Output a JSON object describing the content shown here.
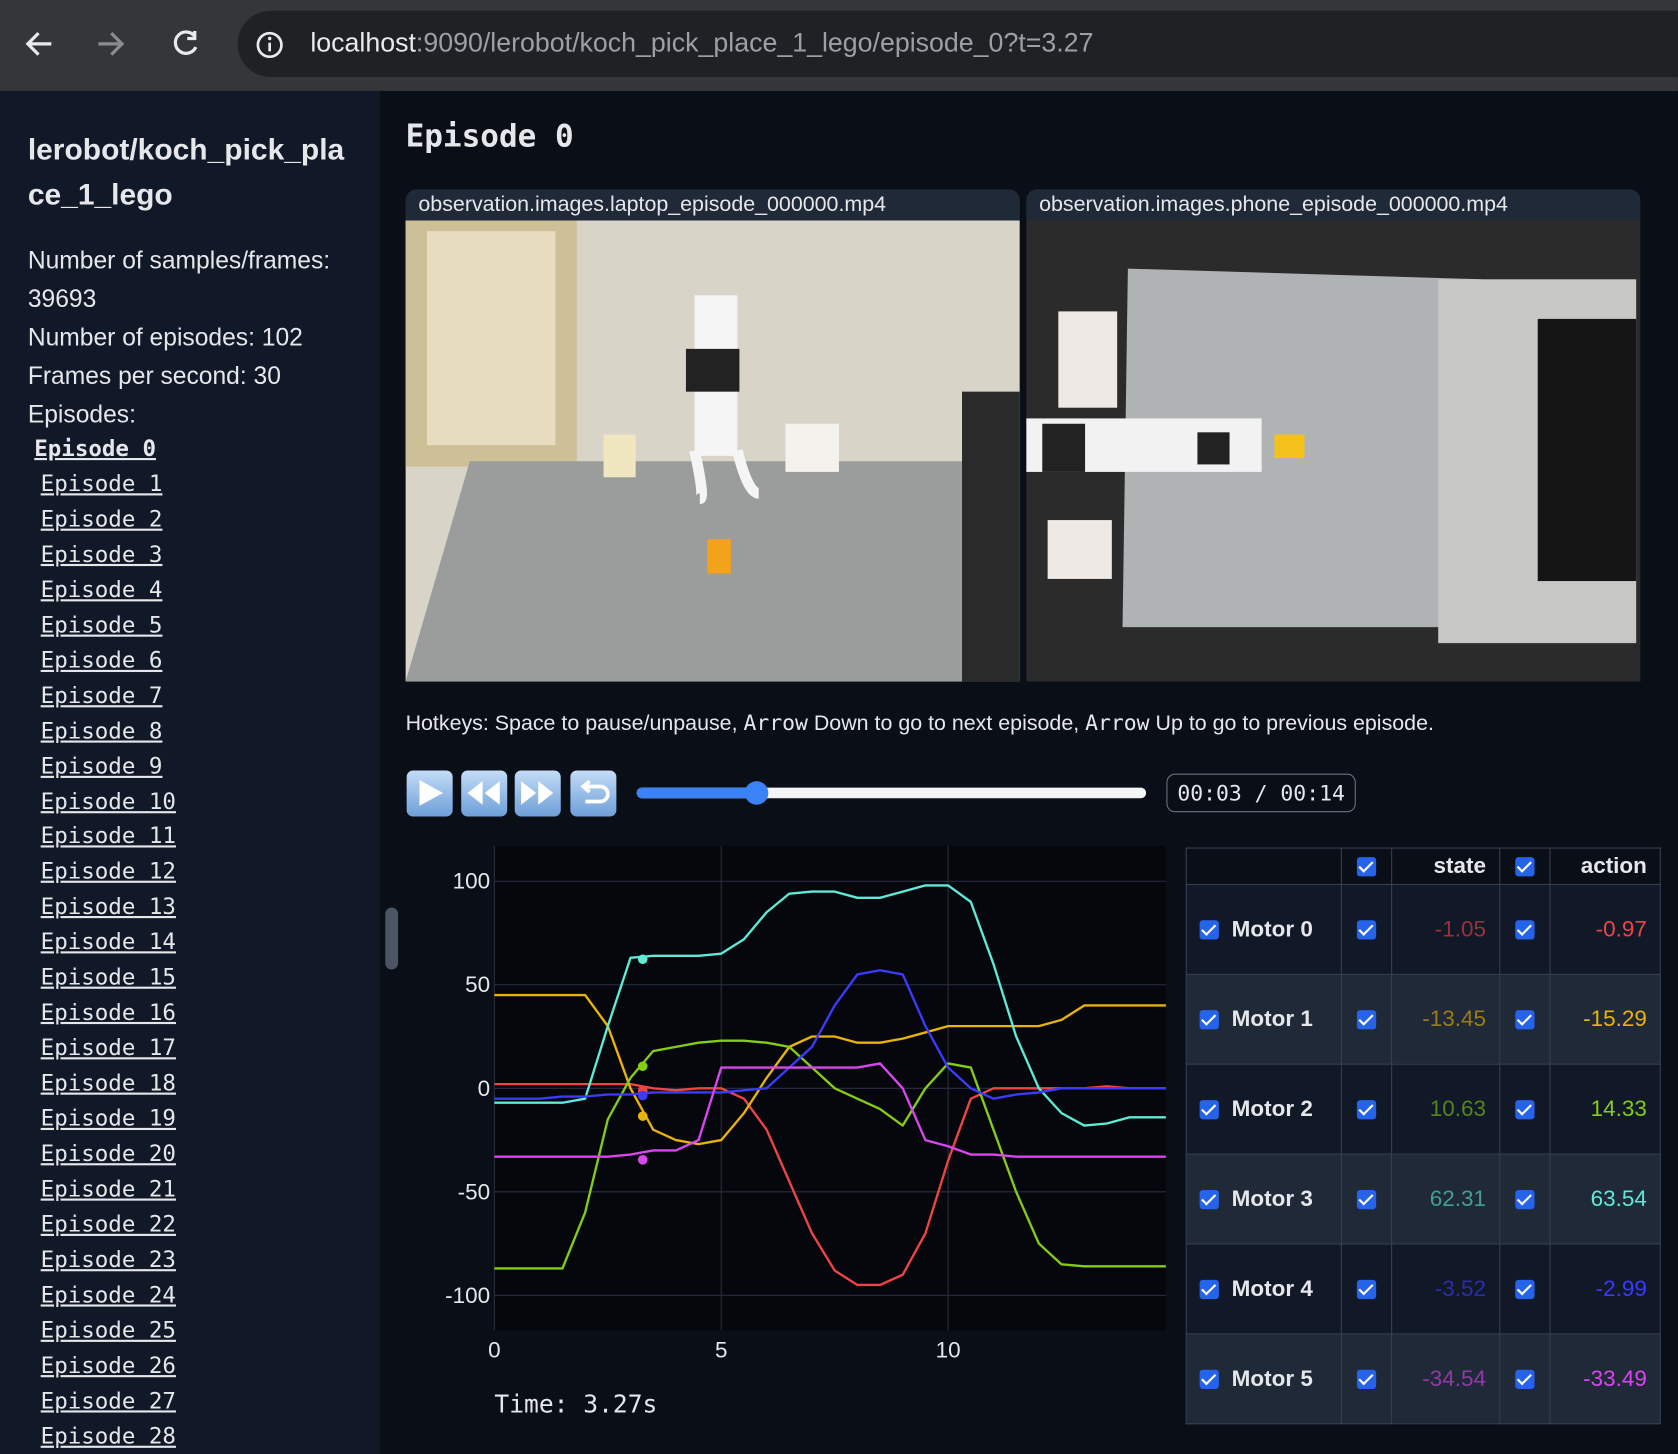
{
  "browser": {
    "url_host": "localhost",
    "url_path": ":9090/lerobot/koch_pick_place_1_lego/episode_0?t=3.27"
  },
  "sidebar": {
    "title": "lerobot/koch_pick_place_1_lego",
    "stats": [
      "Number of samples/frames: 39693",
      "Number of episodes: 102",
      "Frames per second: 30"
    ],
    "episodes_label": "Episodes:",
    "episodes": [
      "Episode 0",
      "Episode 1",
      "Episode 2",
      "Episode 3",
      "Episode 4",
      "Episode 5",
      "Episode 6",
      "Episode 7",
      "Episode 8",
      "Episode 9",
      "Episode 10",
      "Episode 11",
      "Episode 12",
      "Episode 13",
      "Episode 14",
      "Episode 15",
      "Episode 16",
      "Episode 17",
      "Episode 18",
      "Episode 19",
      "Episode 20",
      "Episode 21",
      "Episode 22",
      "Episode 23",
      "Episode 24",
      "Episode 25",
      "Episode 26",
      "Episode 27",
      "Episode 28"
    ]
  },
  "main": {
    "title": "Episode 0",
    "videos": [
      "observation.images.laptop_episode_000000.mp4",
      "observation.images.phone_episode_000000.mp4"
    ],
    "hotkeys": [
      "Hotkeys: Space to pause/unpause, ",
      "Arrow",
      " Down to go to next episode, ",
      "Arrow",
      " Up to go to previous episode."
    ],
    "player_time": "00:03 / 00:14"
  },
  "table": {
    "headers": [
      "state",
      "action"
    ],
    "rows": [
      {
        "name": "Motor 0",
        "state": -1.05,
        "action": -0.97
      },
      {
        "name": "Motor 1",
        "state": -13.45,
        "action": -15.29
      },
      {
        "name": "Motor 2",
        "state": 10.63,
        "action": 14.33
      },
      {
        "name": "Motor 3",
        "state": 62.31,
        "action": 63.54
      },
      {
        "name": "Motor 4",
        "state": -3.52,
        "action": -2.99
      },
      {
        "name": "Motor 5",
        "state": -34.54,
        "action": -33.49
      }
    ]
  },
  "chart_data": {
    "type": "line",
    "x": [
      0,
      0.5,
      1,
      1.5,
      2,
      2.5,
      3,
      3.5,
      4,
      4.5,
      5,
      5.5,
      6,
      6.5,
      7,
      7.5,
      8,
      8.5,
      9,
      9.5,
      10,
      10.5,
      11,
      11.5,
      12,
      12.5,
      13,
      13.5,
      14,
      14.5,
      14.8
    ],
    "series": [
      {
        "color": "#ef4444",
        "values": [
          2,
          2,
          2,
          2,
          2,
          2,
          2,
          0,
          -1,
          0,
          0,
          -5,
          -20,
          -45,
          -70,
          -88,
          -95,
          -95,
          -90,
          -70,
          -35,
          -5,
          0,
          0,
          0,
          0,
          0,
          1,
          0,
          0,
          0
        ]
      },
      {
        "color": "#eab308",
        "values": [
          45,
          45,
          45,
          45,
          45,
          30,
          0,
          -20,
          -25,
          -27,
          -25,
          -12,
          5,
          20,
          25,
          25,
          22,
          22,
          24,
          27,
          30,
          30,
          30,
          30,
          30,
          33,
          40,
          40,
          40,
          40,
          40
        ]
      },
      {
        "color": "#84cc16",
        "values": [
          -87,
          -87,
          -87,
          -87,
          -60,
          -15,
          5,
          18,
          20,
          22,
          23,
          23,
          22,
          20,
          10,
          0,
          -5,
          -10,
          -18,
          0,
          12,
          10,
          -20,
          -50,
          -75,
          -85,
          -86,
          -86,
          -86,
          -86,
          -86
        ]
      },
      {
        "color": "#5eead4",
        "values": [
          -7,
          -7,
          -7,
          -7,
          -5,
          30,
          63,
          64,
          64,
          64,
          65,
          72,
          85,
          94,
          95,
          95,
          92,
          92,
          95,
          98,
          98,
          90,
          60,
          25,
          0,
          -12,
          -18,
          -17,
          -14,
          -14,
          -14
        ]
      },
      {
        "color": "#3b3bff",
        "values": [
          -5,
          -5,
          -5,
          -4,
          -4,
          -3,
          -3,
          -2,
          -2,
          -2,
          -2,
          -1,
          0,
          10,
          20,
          40,
          55,
          57,
          55,
          30,
          10,
          0,
          -5,
          -3,
          -2,
          0,
          0,
          0,
          0,
          0,
          0
        ]
      },
      {
        "color": "#d946ef",
        "values": [
          -33,
          -33,
          -33,
          -33,
          -33,
          -33,
          -32,
          -30,
          -30,
          -25,
          10,
          10,
          10,
          10,
          10,
          10,
          10,
          12,
          0,
          -25,
          -28,
          -32,
          -32,
          -33,
          -33,
          -33,
          -33,
          -33,
          -33,
          -33,
          -33
        ]
      }
    ],
    "xlim": [
      0,
      14.8
    ],
    "ylim": [
      -117,
      117
    ],
    "xticks": [
      0,
      5,
      10
    ],
    "yticks": [
      -100,
      -50,
      0,
      50,
      100
    ],
    "grid": true,
    "current_time": {
      "value": 3.27,
      "label": "Time: 3.27s"
    }
  }
}
